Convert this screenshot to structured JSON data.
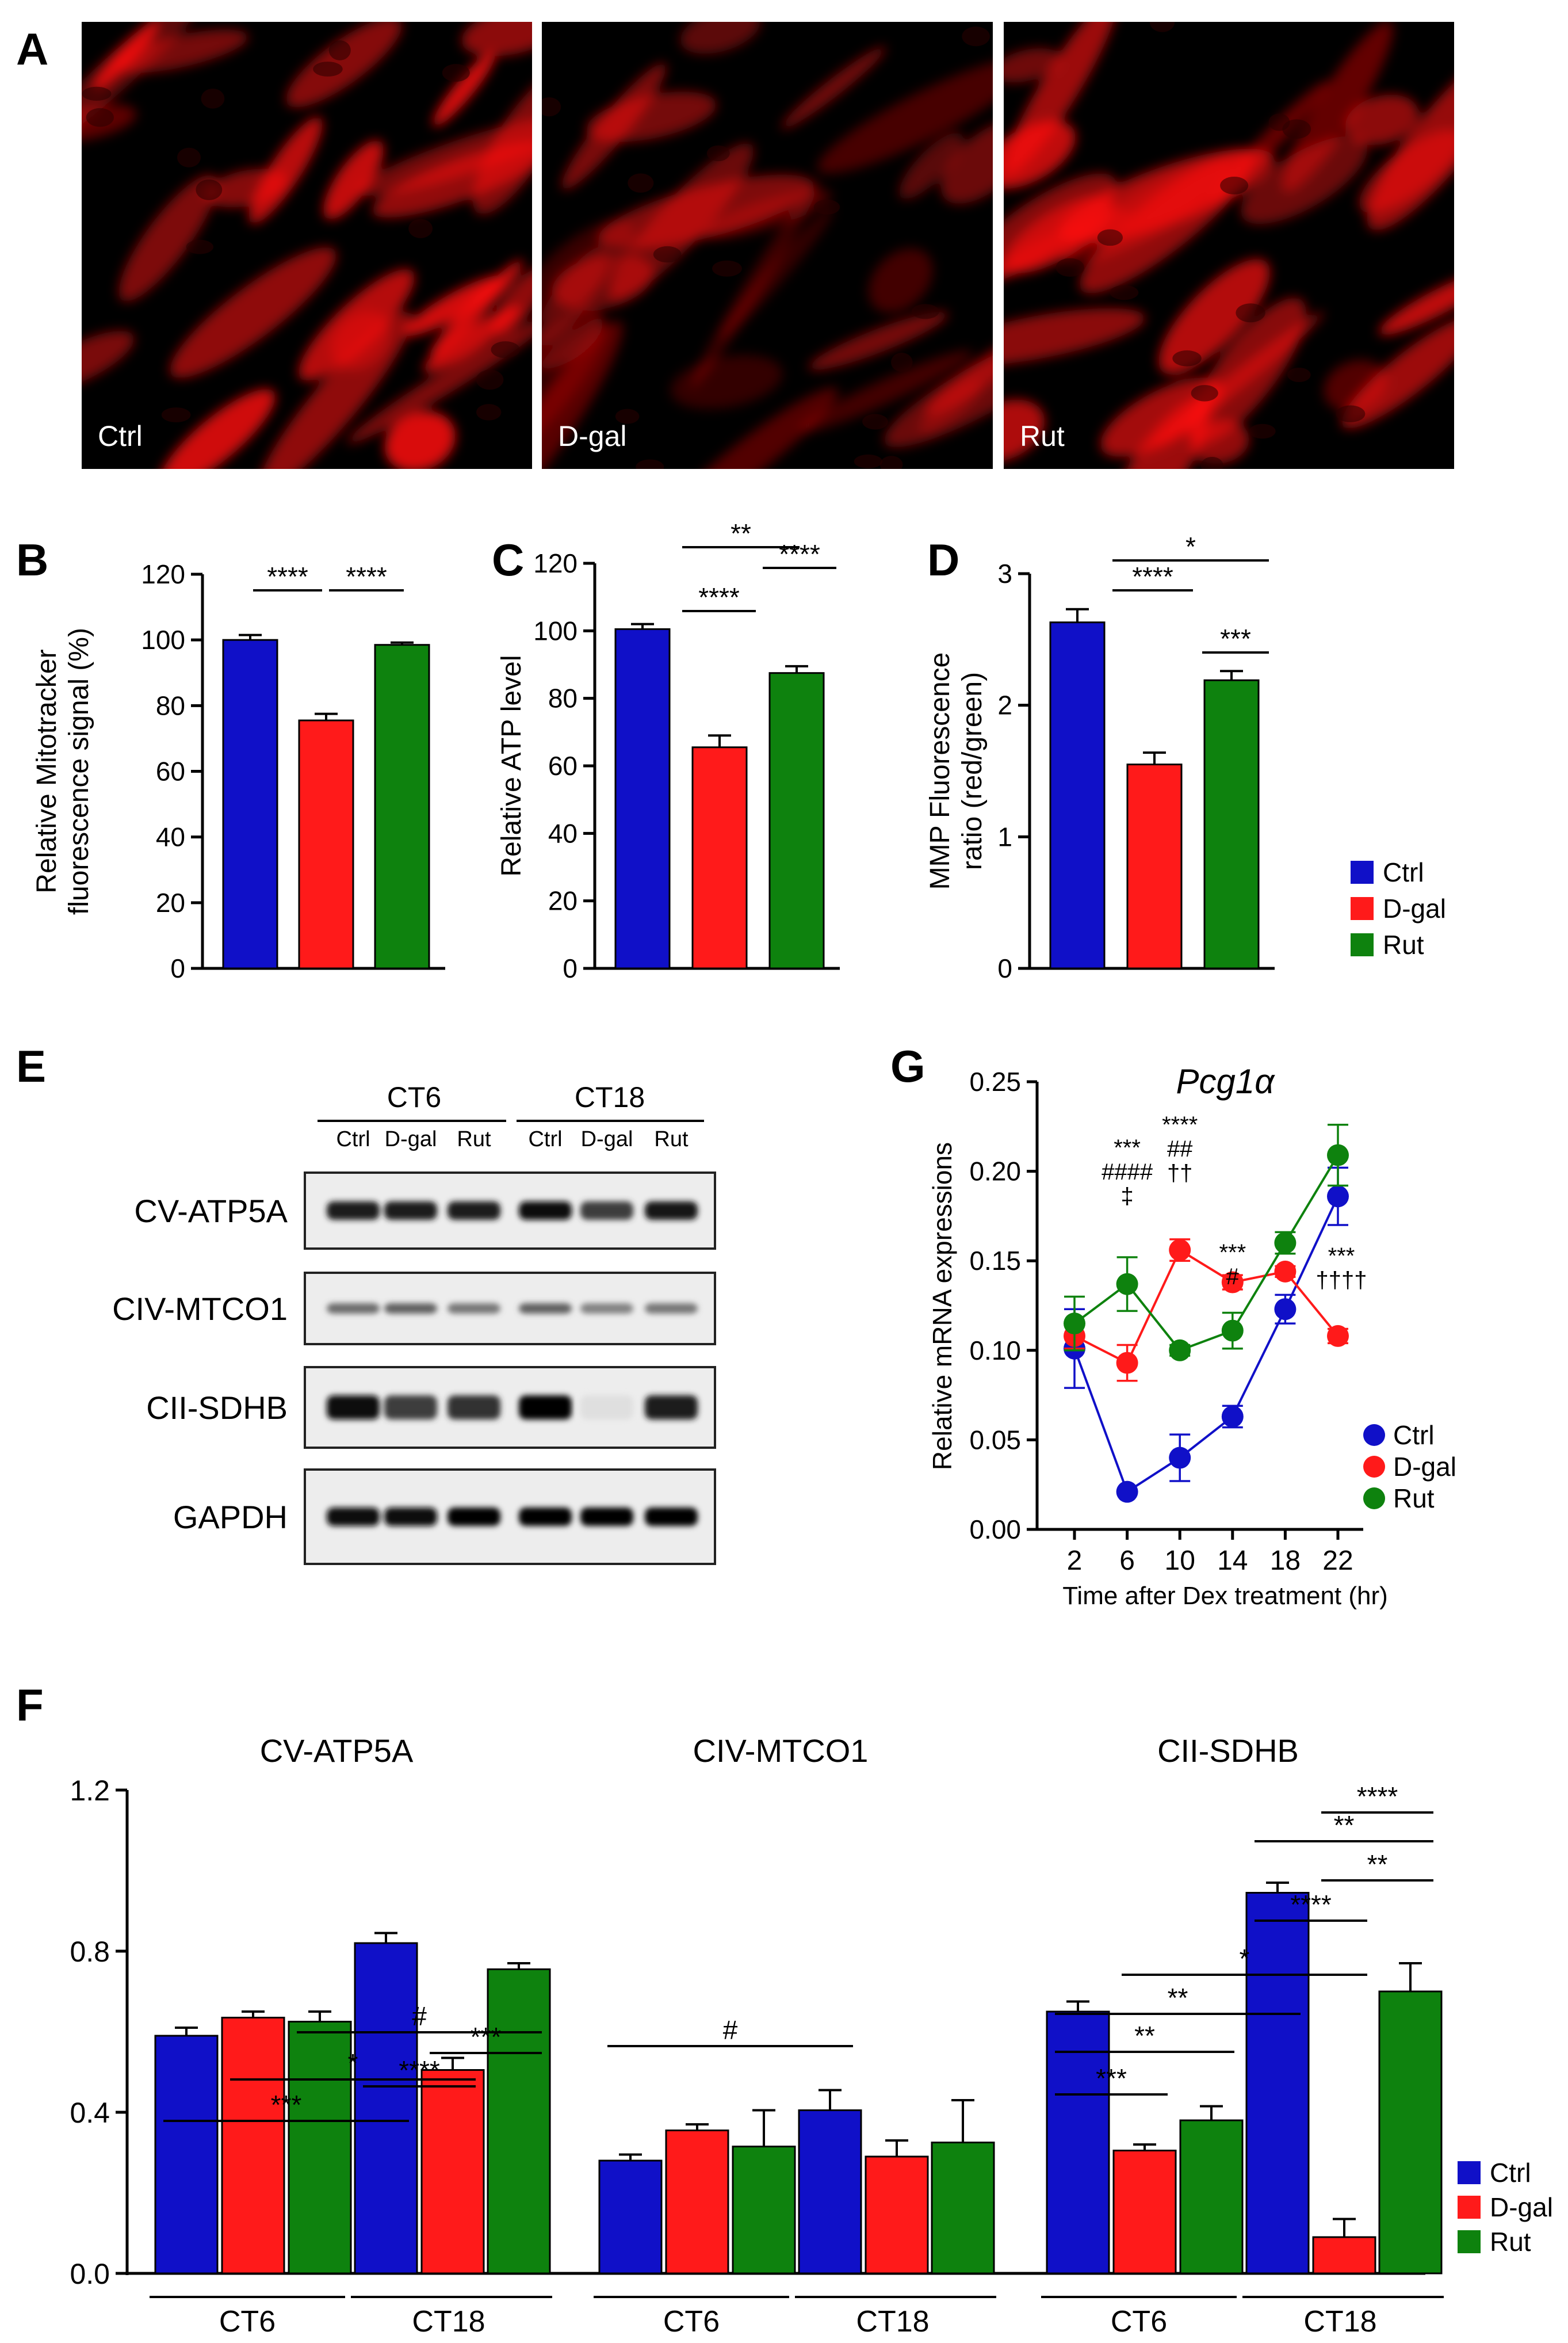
{
  "colors": {
    "ctrl": "#1010c8",
    "dgal": "#ff1a1a",
    "rut": "#0e820e",
    "axis": "#000000"
  },
  "panel_labels": {
    "a": "A",
    "b": "B",
    "c": "C",
    "d": "D",
    "e": "E",
    "f": "F",
    "g": "G"
  },
  "micrographs": [
    {
      "label": "Ctrl",
      "intensity": 1.0
    },
    {
      "label": "D-gal",
      "intensity": 0.55
    },
    {
      "label": "Rut",
      "intensity": 0.85
    }
  ],
  "legend": [
    "Ctrl",
    "D-gal",
    "Rut"
  ],
  "chart_data": [
    {
      "id": "B",
      "type": "bar",
      "categories": [
        "Ctrl",
        "D-gal",
        "Rut"
      ],
      "values": [
        100,
        75.5,
        98.5
      ],
      "errors": [
        1.5,
        2,
        0.7
      ],
      "ylabel": [
        "Relative Mitotracker",
        "fluorescence signal (%)"
      ],
      "ylim": [
        0,
        120
      ],
      "yticks": [
        0,
        20,
        40,
        60,
        80,
        100,
        120
      ],
      "ytick_labels": [
        "0",
        "20",
        "40",
        "60",
        "80",
        "100",
        "120"
      ],
      "significance": [
        {
          "from": 0,
          "to": 1,
          "label": "****"
        },
        {
          "from": 1,
          "to": 2,
          "label": "****"
        }
      ]
    },
    {
      "id": "C",
      "type": "bar",
      "categories": [
        "Ctrl",
        "D-gal",
        "Rut"
      ],
      "values": [
        100.5,
        65.5,
        87.5
      ],
      "errors": [
        1.5,
        3.5,
        2
      ],
      "ylabel": [
        "Relative ATP level"
      ],
      "ylim": [
        0,
        120
      ],
      "yticks": [
        0,
        20,
        40,
        60,
        80,
        100,
        120
      ],
      "ytick_labels": [
        "0",
        "20",
        "40",
        "60",
        "80",
        "100",
        "120"
      ],
      "significance": [
        {
          "from": 0,
          "to": 2,
          "label": "**"
        },
        {
          "from": 1,
          "to": 2,
          "label": "****"
        },
        {
          "from": 0,
          "to": 1,
          "label": "****"
        }
      ]
    },
    {
      "id": "D",
      "type": "bar",
      "categories": [
        "Ctrl",
        "D-gal",
        "Rut"
      ],
      "values": [
        2.63,
        1.55,
        2.19
      ],
      "errors": [
        0.1,
        0.09,
        0.07
      ],
      "ylabel": [
        "MMP Fluorescence",
        "ratio (red/green)"
      ],
      "ylim": [
        0,
        3
      ],
      "yticks": [
        0,
        1,
        2,
        3
      ],
      "ytick_labels": [
        "0",
        "1",
        "2",
        "3"
      ],
      "significance": [
        {
          "from": 0,
          "to": 2,
          "label": "*"
        },
        {
          "from": 0,
          "to": 1,
          "label": "****"
        },
        {
          "from": 1,
          "to": 2,
          "label": "***"
        }
      ]
    },
    {
      "id": "E",
      "type": "table",
      "groups": [
        "CT6",
        "CT18"
      ],
      "lanes": [
        "Ctrl",
        "D-gal",
        "Rut",
        "Ctrl",
        "D-gal",
        "Rut"
      ],
      "blots": [
        {
          "label": "CV-ATP5A",
          "band_strength": [
            0.9,
            0.9,
            0.9,
            0.95,
            0.75,
            0.92
          ]
        },
        {
          "label": "CIV-MTCO1",
          "band_strength": [
            0.55,
            0.6,
            0.5,
            0.6,
            0.45,
            0.5
          ]
        },
        {
          "label": "CII-SDHB",
          "band_strength": [
            0.95,
            0.75,
            0.8,
            1.0,
            0.03,
            0.9
          ]
        },
        {
          "label": "GAPDH",
          "band_strength": [
            0.95,
            0.95,
            1.0,
            1.0,
            1.0,
            1.0
          ]
        }
      ]
    },
    {
      "id": "G",
      "type": "line",
      "title": "Pcg1α",
      "x": [
        2,
        6,
        10,
        14,
        18,
        22
      ],
      "xlim": [
        0,
        24
      ],
      "xlabel": "Time after Dex treatment (hr)",
      "ylabel": "Relative mRNA expressions",
      "ylim": [
        0,
        0.25
      ],
      "yticks": [
        0,
        0.05,
        0.1,
        0.15,
        0.2,
        0.25
      ],
      "ytick_labels": [
        "0.00",
        "0.05",
        "0.10",
        "0.15",
        "0.20",
        "0.25"
      ],
      "series": [
        {
          "name": "Ctrl",
          "values": [
            0.101,
            0.021,
            0.04,
            0.063,
            0.123,
            0.186
          ],
          "errors": [
            0.022,
            0.001,
            0.013,
            0.006,
            0.008,
            0.016
          ]
        },
        {
          "name": "D-gal",
          "values": [
            0.108,
            0.093,
            0.156,
            0.138,
            0.144,
            0.108
          ],
          "errors": [
            0.007,
            0.01,
            0.006,
            0.004,
            0.003,
            0.004
          ]
        },
        {
          "name": "Rut",
          "values": [
            0.115,
            0.137,
            0.1,
            0.111,
            0.16,
            0.209
          ],
          "errors": [
            0.015,
            0.015,
            0.003,
            0.01,
            0.006,
            0.017
          ]
        }
      ],
      "annotations": [
        {
          "x": 6,
          "lines": [
            "***",
            "####",
            "‡"
          ]
        },
        {
          "x": 10,
          "lines": [
            "****",
            "##",
            "††"
          ]
        },
        {
          "x": 14,
          "lines": [
            "***",
            "#"
          ]
        },
        {
          "x": 22,
          "lines": [
            "***",
            "††††"
          ]
        }
      ]
    },
    {
      "id": "F",
      "type": "bar",
      "ylim": [
        0,
        1.2
      ],
      "yticks": [
        0,
        0.4,
        0.8,
        1.2
      ],
      "ytick_labels": [
        "0.0",
        "0.4",
        "0.8",
        "1.2"
      ],
      "groups": [
        "CT6",
        "CT18"
      ],
      "series_names": [
        "Ctrl",
        "D-gal",
        "Rut"
      ],
      "subplots": [
        {
          "title": "CV-ATP5A",
          "values": [
            0.59,
            0.635,
            0.625,
            0.82,
            0.505,
            0.755
          ],
          "errors": [
            0.02,
            0.015,
            0.025,
            0.025,
            0.03,
            0.015
          ],
          "significance": [
            {
              "from": 0,
              "to": 3,
              "label": "***"
            },
            {
              "from": 1,
              "to": 4,
              "label": "*"
            },
            {
              "from": 2,
              "to": 5,
              "label": "#"
            },
            {
              "from": 3,
              "to": 4,
              "label": "****"
            },
            {
              "from": 4,
              "to": 5,
              "label": "***"
            }
          ]
        },
        {
          "title": "CIV-MTCO1",
          "values": [
            0.28,
            0.355,
            0.315,
            0.405,
            0.29,
            0.325
          ],
          "errors": [
            0.015,
            0.015,
            0.09,
            0.05,
            0.04,
            0.105
          ],
          "significance": [
            {
              "from": 0,
              "to": 3,
              "label": "#"
            }
          ]
        },
        {
          "title": "CII-SDHB",
          "values": [
            0.65,
            0.305,
            0.38,
            0.945,
            0.09,
            0.7
          ],
          "errors": [
            0.025,
            0.015,
            0.035,
            0.025,
            0.045,
            0.07
          ],
          "significance": [
            {
              "from": 0,
              "to": 1,
              "label": "***"
            },
            {
              "from": 0,
              "to": 2,
              "label": "**"
            },
            {
              "from": 0,
              "to": 3,
              "label": "**"
            },
            {
              "from": 1,
              "to": 4,
              "label": "*"
            },
            {
              "from": 3,
              "to": 4,
              "label": "****"
            },
            {
              "from": 4,
              "to": 5,
              "label": "**"
            },
            {
              "from": 3,
              "to": 5,
              "label": "**"
            },
            {
              "from": 4,
              "to": 5,
              "label": "****"
            }
          ]
        }
      ]
    }
  ]
}
